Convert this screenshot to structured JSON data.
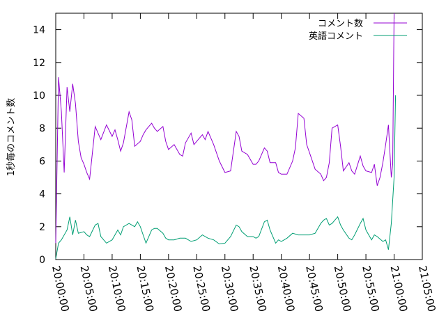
{
  "chart_data": {
    "type": "line",
    "ylabel": "1秒毎のコメント数",
    "xlabel": "",
    "ylim": [
      0,
      15
    ],
    "xlim": [
      "20:00:00",
      "21:05:00"
    ],
    "yticks": [
      0,
      2,
      4,
      6,
      8,
      10,
      12,
      14
    ],
    "xticks": [
      "20:00:00",
      "20:05:00",
      "20:10:00",
      "20:15:00",
      "20:20:00",
      "20:25:00",
      "20:30:00",
      "20:35:00",
      "20:40:00",
      "20:45:00",
      "20:50:00",
      "20:55:00",
      "21:00:00",
      "21:05:00"
    ],
    "grid": false,
    "legend_position": "top-right",
    "series": [
      {
        "name": "コメント数",
        "color": "#9400d3",
        "x": [
          "20:00:00",
          "20:00:30",
          "20:01:00",
          "20:01:30",
          "20:02:00",
          "20:02:30",
          "20:03:00",
          "20:03:30",
          "20:04:00",
          "20:04:30",
          "20:05:00",
          "20:05:30",
          "20:06:00",
          "20:07:00",
          "20:08:00",
          "20:09:00",
          "20:10:00",
          "20:10:30",
          "20:11:00",
          "20:11:30",
          "20:12:00",
          "20:13:00",
          "20:13:30",
          "20:14:00",
          "20:15:00",
          "20:15:30",
          "20:16:00",
          "20:17:00",
          "20:17:30",
          "20:18:00",
          "20:19:00",
          "20:19:30",
          "20:20:00",
          "20:21:00",
          "20:22:00",
          "20:22:30",
          "20:23:00",
          "20:24:00",
          "20:24:30",
          "20:25:00",
          "20:26:00",
          "20:26:30",
          "20:27:00",
          "20:28:00",
          "20:29:00",
          "20:30:00",
          "20:31:00",
          "20:32:00",
          "20:32:30",
          "20:33:00",
          "20:34:00",
          "20:35:00",
          "20:35:30",
          "20:36:00",
          "20:37:00",
          "20:37:30",
          "20:38:00",
          "20:39:00",
          "20:39:30",
          "20:40:00",
          "20:41:00",
          "20:42:00",
          "20:42:30",
          "20:43:00",
          "20:44:00",
          "20:44:30",
          "20:45:00",
          "20:46:00",
          "20:47:00",
          "20:47:30",
          "20:48:00",
          "20:48:30",
          "20:49:00",
          "20:50:00",
          "20:50:30",
          "20:51:00",
          "20:52:00",
          "20:52:30",
          "20:53:00",
          "20:54:00",
          "20:54:30",
          "20:55:00",
          "20:56:00",
          "20:56:30",
          "20:57:00",
          "20:57:30",
          "20:58:00",
          "20:58:30",
          "20:59:00",
          "20:59:30",
          "20:59:45",
          "21:00:00"
        ],
        "y": [
          1.0,
          11.1,
          9.0,
          5.3,
          10.5,
          9.0,
          10.7,
          9.5,
          7.2,
          6.2,
          5.8,
          5.3,
          4.9,
          8.1,
          7.3,
          8.2,
          7.5,
          7.9,
          7.3,
          6.6,
          7.1,
          9.0,
          8.5,
          6.9,
          7.2,
          7.6,
          7.9,
          8.3,
          8.0,
          7.8,
          8.1,
          7.2,
          6.7,
          7.0,
          6.4,
          6.3,
          7.1,
          7.7,
          7.0,
          7.2,
          7.6,
          7.3,
          7.8,
          7.0,
          6.0,
          5.3,
          5.4,
          7.8,
          7.5,
          6.6,
          6.4,
          5.8,
          5.8,
          6.0,
          6.8,
          6.6,
          5.9,
          5.9,
          5.3,
          5.2,
          5.2,
          6.0,
          6.8,
          8.9,
          8.6,
          7.0,
          6.5,
          5.5,
          5.2,
          4.8,
          5.0,
          5.9,
          8.0,
          8.2,
          6.9,
          5.4,
          5.9,
          5.4,
          5.2,
          6.3,
          5.7,
          5.4,
          5.3,
          5.8,
          4.5,
          5.0,
          5.9,
          7.0,
          8.2,
          5.0,
          5.8,
          15.0
        ]
      },
      {
        "name": "英語コメント",
        "color": "#009e73",
        "x": [
          "20:00:00",
          "20:00:30",
          "20:01:00",
          "20:02:00",
          "20:02:30",
          "20:03:00",
          "20:03:30",
          "20:04:00",
          "20:05:00",
          "20:05:30",
          "20:06:00",
          "20:07:00",
          "20:07:30",
          "20:08:00",
          "20:09:00",
          "20:10:00",
          "20:11:00",
          "20:11:30",
          "20:12:00",
          "20:13:00",
          "20:14:00",
          "20:14:30",
          "20:15:00",
          "20:15:30",
          "20:16:00",
          "20:17:00",
          "20:17:30",
          "20:18:00",
          "20:19:00",
          "20:19:30",
          "20:20:00",
          "20:21:00",
          "20:22:00",
          "20:23:00",
          "20:24:00",
          "20:25:00",
          "20:26:00",
          "20:27:00",
          "20:28:00",
          "20:29:00",
          "20:30:00",
          "20:31:00",
          "20:32:00",
          "20:32:30",
          "20:33:00",
          "20:34:00",
          "20:35:00",
          "20:35:30",
          "20:36:00",
          "20:37:00",
          "20:37:30",
          "20:38:00",
          "20:39:00",
          "20:39:30",
          "20:40:00",
          "20:41:00",
          "20:42:00",
          "20:43:00",
          "20:44:00",
          "20:45:00",
          "20:46:00",
          "20:47:00",
          "20:47:30",
          "20:48:00",
          "20:48:30",
          "20:49:00",
          "20:50:00",
          "20:50:30",
          "20:51:00",
          "20:52:00",
          "20:52:30",
          "20:53:00",
          "20:54:00",
          "20:54:30",
          "20:55:00",
          "20:56:00",
          "20:56:30",
          "20:57:00",
          "20:58:00",
          "20:58:30",
          "20:59:00",
          "20:59:30",
          "21:00:00",
          "21:00:15"
        ],
        "y": [
          0.05,
          1.0,
          1.2,
          1.8,
          2.6,
          1.5,
          2.4,
          1.6,
          1.7,
          1.5,
          1.4,
          2.1,
          2.2,
          1.4,
          1.0,
          1.2,
          1.8,
          1.5,
          2.0,
          2.2,
          2.0,
          2.3,
          2.0,
          1.5,
          1.0,
          1.8,
          1.9,
          1.9,
          1.6,
          1.3,
          1.2,
          1.2,
          1.3,
          1.3,
          1.1,
          1.2,
          1.5,
          1.3,
          1.2,
          0.95,
          1.0,
          1.4,
          2.1,
          2.0,
          1.7,
          1.4,
          1.4,
          1.3,
          1.4,
          2.3,
          2.4,
          1.8,
          1.0,
          1.2,
          1.1,
          1.3,
          1.6,
          1.5,
          1.5,
          1.5,
          1.6,
          2.2,
          2.4,
          2.5,
          2.1,
          2.2,
          2.6,
          2.1,
          1.8,
          1.3,
          1.2,
          1.5,
          2.2,
          2.5,
          1.8,
          1.2,
          1.5,
          1.4,
          1.1,
          1.2,
          0.6,
          2.2,
          5.0,
          10.0
        ]
      }
    ]
  }
}
